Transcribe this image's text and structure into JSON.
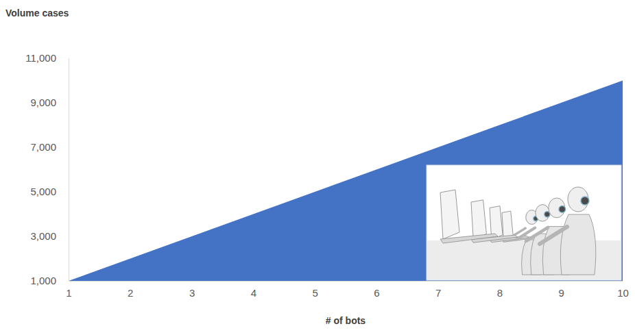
{
  "chart_data": {
    "type": "area",
    "y_label": "Volume cases",
    "x_label": "# of bots",
    "x": [
      1,
      2,
      3,
      4,
      5,
      6,
      7,
      8,
      9,
      10
    ],
    "values": [
      1000,
      2000,
      3000,
      4000,
      5000,
      6000,
      7000,
      8000,
      9000,
      10000
    ],
    "color": "#4472c4",
    "xlim": [
      1,
      10
    ],
    "xticks": [
      1,
      2,
      3,
      4,
      5,
      6,
      7,
      8,
      9,
      10
    ],
    "ylim": [
      1000,
      11000
    ],
    "yticks": [
      {
        "value": 1000,
        "label": "1,000"
      },
      {
        "value": 3000,
        "label": "3,000"
      },
      {
        "value": 5000,
        "label": "5,000"
      },
      {
        "value": 7000,
        "label": "7,000"
      },
      {
        "value": 9000,
        "label": "9,000"
      },
      {
        "value": 11000,
        "label": "11,000"
      }
    ],
    "grid": false
  }
}
